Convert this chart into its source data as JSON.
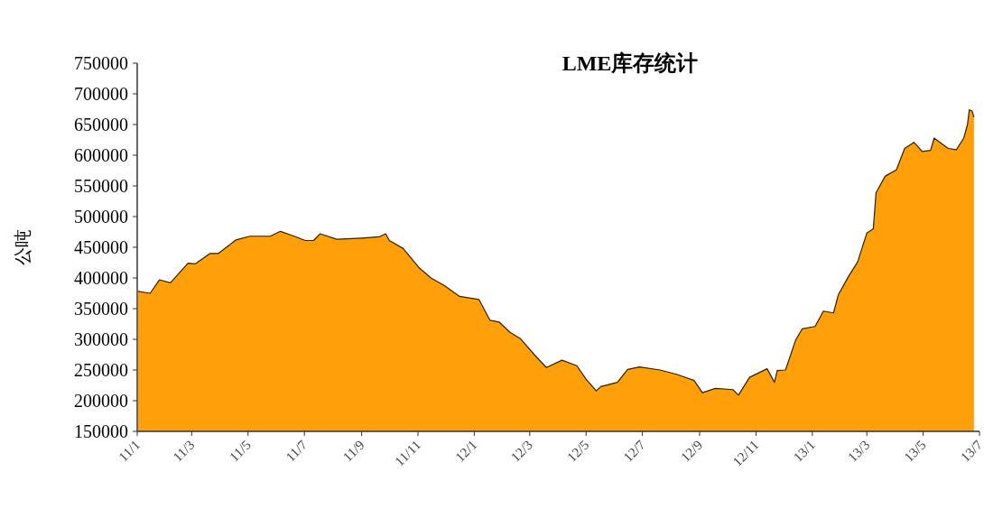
{
  "chart_data": {
    "type": "area",
    "title": "LME库存统计",
    "ylabel": "公吨",
    "x": [
      "2011-01-02",
      "2011-01-15",
      "2011-01-25",
      "2011-02-06",
      "2011-02-25",
      "2011-03-05",
      "2011-03-21",
      "2011-03-30",
      "2011-04-18",
      "2011-05-03",
      "2011-05-25",
      "2011-06-05",
      "2011-06-20",
      "2011-07-02",
      "2011-07-11",
      "2011-07-18",
      "2011-08-05",
      "2011-09-01",
      "2011-09-20",
      "2011-09-27",
      "2011-10-01",
      "2011-10-16",
      "2011-11-02",
      "2011-11-15",
      "2011-11-30",
      "2011-12-16",
      "2012-01-06",
      "2012-01-18",
      "2012-01-28",
      "2012-02-09",
      "2012-02-20",
      "2012-03-06",
      "2012-03-19",
      "2012-04-05",
      "2012-04-21",
      "2012-05-01",
      "2012-05-12",
      "2012-05-17",
      "2012-06-04",
      "2012-06-15",
      "2012-06-28",
      "2012-07-20",
      "2012-08-07",
      "2012-08-26",
      "2012-09-04",
      "2012-09-18",
      "2012-10-07",
      "2012-10-13",
      "2012-10-25",
      "2012-11-13",
      "2012-11-21",
      "2012-11-24",
      "2012-12-03",
      "2012-12-14",
      "2012-12-21",
      "2013-01-04",
      "2013-01-13",
      "2013-01-24",
      "2013-01-29",
      "2013-02-09",
      "2013-02-19",
      "2013-03-01",
      "2013-03-08",
      "2013-03-11",
      "2013-03-21",
      "2013-04-02",
      "2013-04-11",
      "2013-04-21",
      "2013-04-30",
      "2013-05-09",
      "2013-05-13",
      "2013-05-28",
      "2013-06-06",
      "2013-06-14",
      "2013-06-18",
      "2013-06-20",
      "2013-06-23",
      "2013-06-25"
    ],
    "series": [
      {
        "color": "#ffa00a",
        "values": [
          378000,
          375000,
          397000,
          392000,
          424000,
          423000,
          440000,
          440000,
          462000,
          468000,
          468000,
          476000,
          468000,
          461000,
          461000,
          472000,
          463000,
          465000,
          467000,
          472000,
          461000,
          448000,
          417000,
          400000,
          387000,
          370000,
          365000,
          331000,
          328000,
          311000,
          301000,
          275000,
          254000,
          266000,
          257000,
          235000,
          216000,
          223000,
          230000,
          251000,
          255000,
          250000,
          243000,
          233000,
          213000,
          220000,
          218000,
          209000,
          238000,
          252000,
          230000,
          249000,
          250000,
          299000,
          317000,
          321000,
          346000,
          343000,
          372000,
          402000,
          426000,
          473000,
          480000,
          539000,
          566000,
          576000,
          611000,
          621000,
          606000,
          608000,
          628000,
          611000,
          609000,
          628000,
          650000,
          674000,
          672000,
          662000
        ]
      }
    ],
    "xlim": [
      "2011-01-01",
      "2013-07-01"
    ],
    "xticks": [
      {
        "value": "2011-01",
        "label": "11/1"
      },
      {
        "value": "2011-03",
        "label": "11/3"
      },
      {
        "value": "2011-05",
        "label": "11/5"
      },
      {
        "value": "2011-07",
        "label": "11/7"
      },
      {
        "value": "2011-09",
        "label": "11/9"
      },
      {
        "value": "2011-11",
        "label": "11/11"
      },
      {
        "value": "2012-01",
        "label": "12/1"
      },
      {
        "value": "2012-03",
        "label": "12/3"
      },
      {
        "value": "2012-05",
        "label": "12/5"
      },
      {
        "value": "2012-07",
        "label": "12/7"
      },
      {
        "value": "2012-09",
        "label": "12/9"
      },
      {
        "value": "2012-11",
        "label": "12/11"
      },
      {
        "value": "2013-01",
        "label": "13/1"
      },
      {
        "value": "2013-03",
        "label": "13/3"
      },
      {
        "value": "2013-05",
        "label": "13/5"
      },
      {
        "value": "2013-07",
        "label": "13/7"
      }
    ],
    "ylim": [
      150000,
      750000
    ],
    "yticks": [
      150000,
      200000,
      250000,
      300000,
      350000,
      400000,
      450000,
      500000,
      550000,
      600000,
      650000,
      700000,
      750000
    ],
    "grid": false
  }
}
